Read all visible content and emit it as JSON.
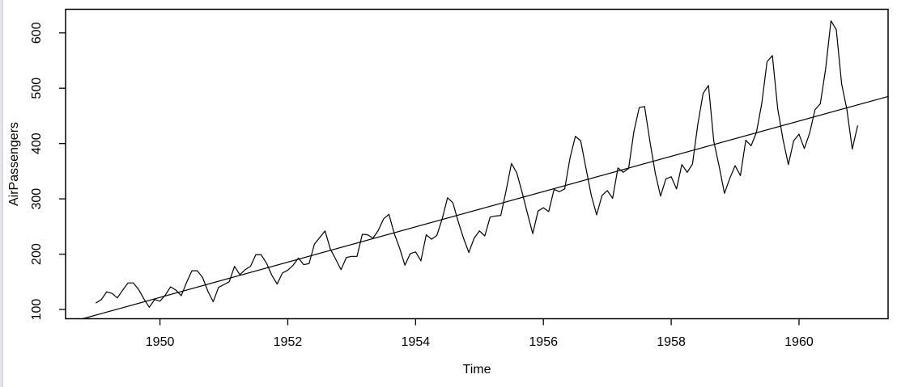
{
  "window": {
    "background": "#ffffff",
    "edge_strip_color": "#e4e4e9"
  },
  "chart_data": {
    "type": "line",
    "title": "",
    "xlabel": "Time",
    "ylabel": "AirPassengers",
    "grid": false,
    "legend": null,
    "line_color": "#000000",
    "axis_color": "#000000",
    "xlim": [
      1948.523,
      1961.394
    ],
    "ylim": [
      83.28,
      642.72
    ],
    "x_ticks": [
      1950,
      1952,
      1954,
      1956,
      1958,
      1960
    ],
    "y_ticks": [
      100,
      200,
      300,
      400,
      500,
      600
    ],
    "series": [
      {
        "name": "AirPassengers",
        "x_start": 1949,
        "points_per_year": 12,
        "values": [
          112,
          118,
          132,
          129,
          121,
          135,
          148,
          148,
          136,
          119,
          104,
          118,
          115,
          126,
          141,
          135,
          125,
          149,
          170,
          170,
          158,
          133,
          114,
          140,
          145,
          150,
          178,
          163,
          172,
          178,
          199,
          199,
          184,
          162,
          146,
          166,
          171,
          180,
          193,
          181,
          183,
          218,
          230,
          242,
          209,
          191,
          172,
          194,
          196,
          196,
          236,
          235,
          229,
          243,
          264,
          272,
          237,
          211,
          180,
          201,
          204,
          188,
          235,
          227,
          234,
          264,
          302,
          293,
          259,
          229,
          203,
          229,
          242,
          233,
          267,
          269,
          270,
          315,
          364,
          347,
          312,
          274,
          237,
          278,
          284,
          277,
          317,
          313,
          318,
          374,
          413,
          405,
          355,
          306,
          271,
          306,
          315,
          301,
          356,
          348,
          355,
          422,
          465,
          467,
          404,
          347,
          305,
          336,
          340,
          318,
          362,
          348,
          363,
          435,
          491,
          505,
          404,
          359,
          310,
          337,
          360,
          342,
          406,
          396,
          420,
          472,
          548,
          559,
          463,
          407,
          362,
          405,
          417,
          391,
          419,
          461,
          472,
          535,
          622,
          606,
          508,
          461,
          390,
          432
        ]
      }
    ],
    "trend_line": {
      "kind": "linear-regression",
      "slope": 31.886,
      "intercept": -62055.91
    }
  }
}
